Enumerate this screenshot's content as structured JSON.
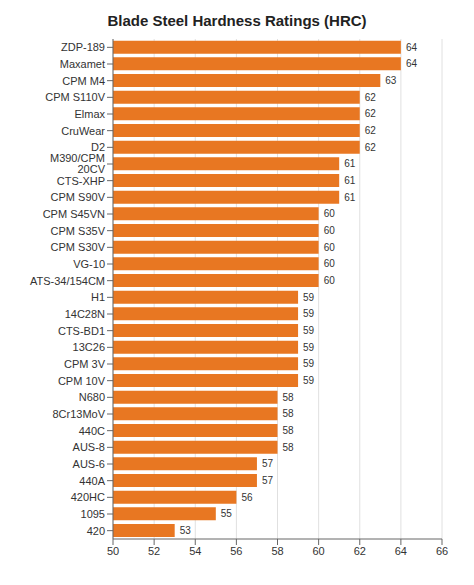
{
  "chart_data": {
    "type": "bar",
    "title": "Blade Steel Hardness Ratings (HRC)",
    "categories": [
      "ZDP-189",
      "Maxamet",
      "CPM M4",
      "CPM S110V",
      "Elmax",
      "CruWear",
      "D2",
      "M390/CPM 20CV",
      "CTS-XHP",
      "CPM S90V",
      "CPM S45VN",
      "CPM S35V",
      "CPM S30V",
      "VG-10",
      "ATS-34/154CM",
      "H1",
      "14C28N",
      "CTS-BD1",
      "13C26",
      "CPM 3V",
      "CPM 10V",
      "N680",
      "8Cr13MoV",
      "440C",
      "AUS-8",
      "AUS-6",
      "440A",
      "420HC",
      "1095",
      "420"
    ],
    "values": [
      64,
      64,
      63,
      62,
      62,
      62,
      62,
      61,
      61,
      61,
      60,
      60,
      60,
      60,
      60,
      59,
      59,
      59,
      59,
      59,
      59,
      58,
      58,
      58,
      58,
      57,
      57,
      56,
      55,
      53
    ],
    "color": "#E87722",
    "xlim": [
      50,
      66
    ],
    "xticks": [
      50,
      52,
      54,
      56,
      58,
      60,
      62,
      64,
      66
    ],
    "grid": true,
    "orientation": "horizontal",
    "data_labels": true
  }
}
